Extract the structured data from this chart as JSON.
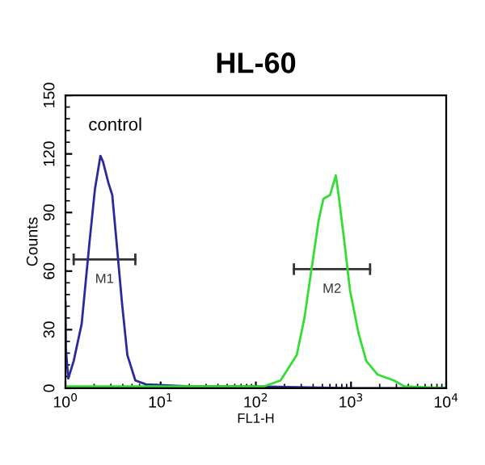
{
  "chart_data": {
    "type": "line",
    "title": "HL-60",
    "xlabel": "FL1-H",
    "ylabel": "Counts",
    "log": "x",
    "xlim": [
      1,
      10000
    ],
    "xticks": [
      {
        "value": 1,
        "label": "10$^{0}$"
      },
      {
        "value": 10,
        "label": "10$^{1}$"
      },
      {
        "value": 100,
        "label": "10$^{2}$"
      },
      {
        "value": 1000,
        "label": "10$^{3}$"
      },
      {
        "value": 10000,
        "label": "10$^{4}$"
      }
    ],
    "ylim": [
      0,
      150
    ],
    "yticks": [
      0,
      30,
      60,
      90,
      120,
      150
    ],
    "grid": false,
    "legend": false,
    "annotations": [
      "control"
    ],
    "series": [
      {
        "name": "M1",
        "color": "#333333",
        "x": [
          1.22,
          5.42
        ],
        "values": [
          66,
          66
        ],
        "errors": [
          3,
          3
        ]
      },
      {
        "name": "M2",
        "color": "#333333",
        "x": [
          251,
          1585
        ],
        "values": [
          61,
          61
        ],
        "errors": [
          3,
          3
        ]
      },
      {
        "color": "#2a2a9a",
        "x": [
          1,
          1.01,
          1.07,
          1.22,
          1.48,
          1.79,
          2.04,
          2.33,
          2.48,
          2.83,
          3.1,
          3.44,
          3.92,
          4.47,
          5.42,
          7.0,
          20,
          100,
          1000,
          10000
        ],
        "values": [
          44,
          20,
          5,
          14,
          33,
          75,
          102,
          119,
          116,
          105,
          99,
          75,
          44,
          17,
          4,
          2,
          1,
          1,
          0,
          0
        ]
      },
      {
        "color": "#33dd33",
        "x": [
          1,
          10,
          50,
          123,
          182,
          269,
          324,
          398,
          457,
          513,
          603,
          692,
          741,
          851,
          977,
          1202,
          1445,
          1905,
          2818,
          3631,
          10000
        ],
        "values": [
          1,
          1,
          1,
          1,
          4,
          17,
          36,
          66,
          86,
          97,
          99,
          109,
          99,
          75,
          50,
          28,
          14,
          7,
          4,
          1,
          0
        ]
      }
    ]
  }
}
